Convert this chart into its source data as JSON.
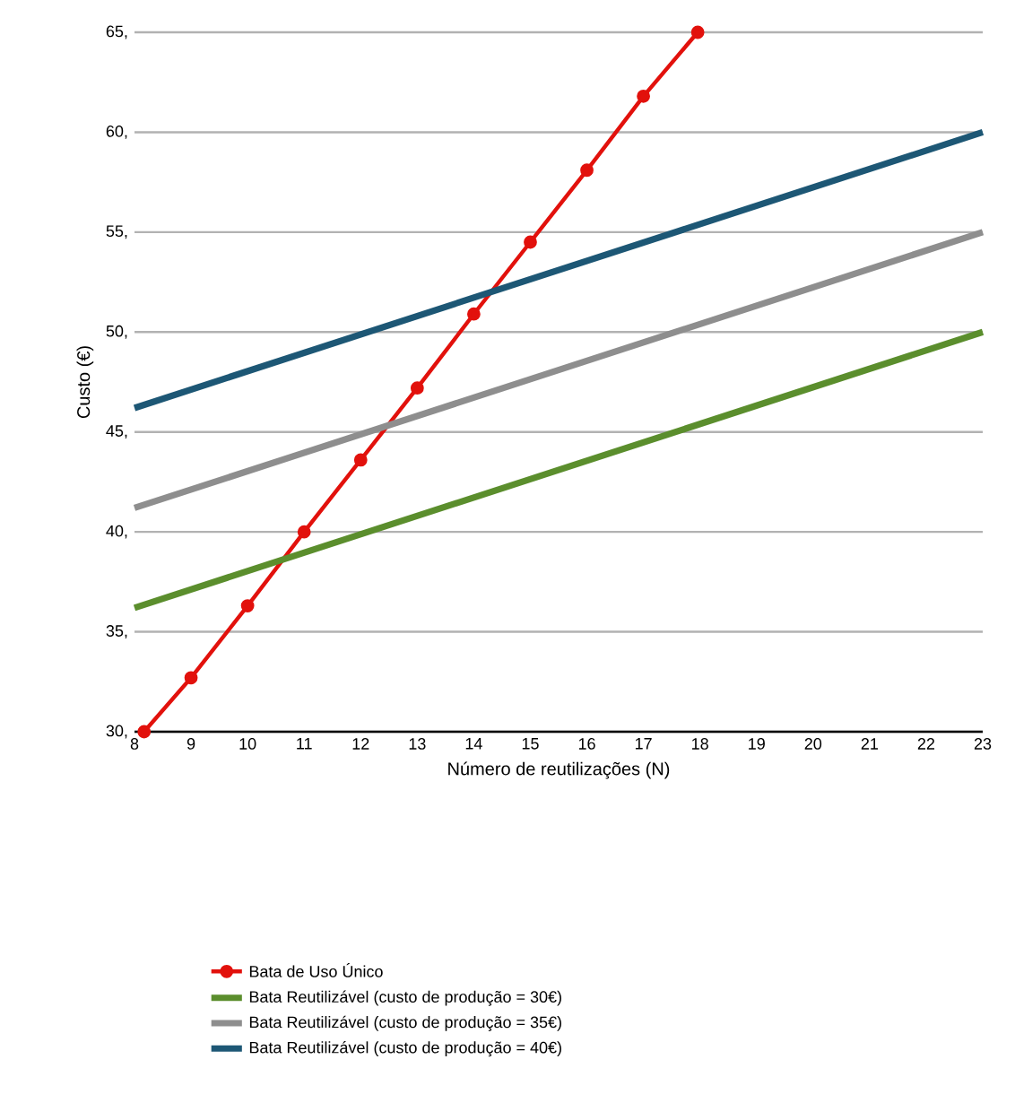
{
  "chart_data": {
    "type": "line",
    "xlabel": "Número de reutilizações (N)",
    "ylabel": "Custo (€)",
    "xlim": [
      8,
      23
    ],
    "xticks": [
      8,
      9,
      10,
      11,
      12,
      13,
      14,
      15,
      16,
      17,
      18,
      19,
      20,
      21,
      22,
      23
    ],
    "ylim": [
      30,
      65
    ],
    "yticks": [
      {
        "value": 30,
        "label": "30,"
      },
      {
        "value": 35,
        "label": "35,"
      },
      {
        "value": 40,
        "label": "40,"
      },
      {
        "value": 45,
        "label": "45,"
      },
      {
        "value": 50,
        "label": "50,"
      },
      {
        "value": 55,
        "label": "55,"
      },
      {
        "value": 60,
        "label": "60,"
      },
      {
        "value": 65,
        "label": "65,"
      }
    ],
    "grid": "y",
    "legend": "bottom",
    "line_style": "solid",
    "series": [
      {
        "name": "Bata de Uso Único",
        "color": "#e2110c",
        "marker": "circle",
        "x": [
          8.17,
          9,
          10,
          11,
          12,
          13,
          14,
          15,
          16,
          17,
          17.96
        ],
        "values": [
          30,
          32.7,
          36.3,
          40,
          43.6,
          47.2,
          50.9,
          54.5,
          58.1,
          61.8,
          65
        ]
      },
      {
        "name": "Bata Reutilizável (custo de produção = 30€)",
        "color": "#5b8e2d",
        "x": [
          8,
          23
        ],
        "values": [
          36.2,
          50
        ]
      },
      {
        "name": "Bata Reutilizável (custo de produção = 35€)",
        "color": "#8e8e8e",
        "x": [
          8,
          23
        ],
        "values": [
          41.2,
          55
        ]
      },
      {
        "name": "Bata Reutilizável (custo de produção = 40€)",
        "color": "#1d5775",
        "x": [
          8,
          23
        ],
        "values": [
          46.2,
          60
        ]
      }
    ]
  }
}
